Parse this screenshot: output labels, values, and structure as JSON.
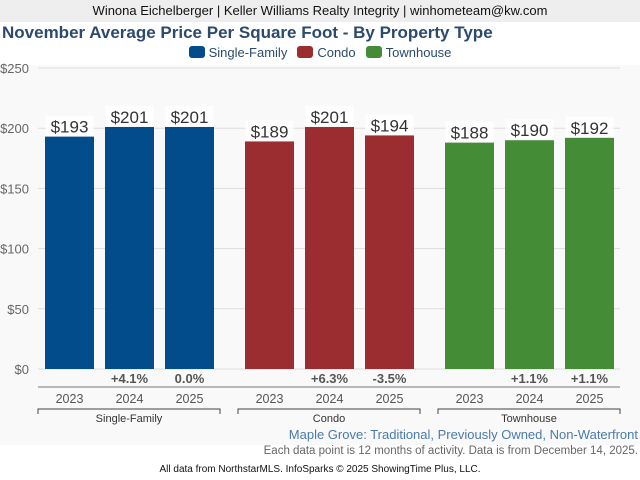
{
  "header": {
    "agent_line": "Winona Eichelberger | Keller Williams Realty Integrity | winhometeam@kw.com"
  },
  "chart_data": {
    "type": "bar",
    "title": "November Average Price Per Square Foot - By Property Type",
    "xlabel": "",
    "ylabel": "",
    "ylim": [
      0,
      250
    ],
    "yticks": [
      0,
      50,
      100,
      150,
      200,
      250
    ],
    "ytick_labels": [
      "$0",
      "$50",
      "$100",
      "$150",
      "$200",
      "$250"
    ],
    "grid": true,
    "legend_position": "top-center",
    "categories": [
      "2023",
      "2024",
      "2025"
    ],
    "series": [
      {
        "name": "Single-Family",
        "color": "#034c8c",
        "values": [
          193,
          201,
          201
        ],
        "value_labels": [
          "$193",
          "$201",
          "$201"
        ],
        "change_labels": [
          "",
          "+4.1%",
          "0.0%"
        ]
      },
      {
        "name": "Condo",
        "color": "#9b2d30",
        "values": [
          189,
          201,
          194
        ],
        "value_labels": [
          "$189",
          "$201",
          "$194"
        ],
        "change_labels": [
          "",
          "+6.3%",
          "-3.5%"
        ]
      },
      {
        "name": "Townhouse",
        "color": "#448c35",
        "values": [
          188,
          190,
          192
        ],
        "value_labels": [
          "$188",
          "$190",
          "$192"
        ],
        "change_labels": [
          "",
          "+1.1%",
          "+1.1%"
        ]
      }
    ]
  },
  "subtitle": "Maple Grove: Traditional, Previously Owned, Non-Waterfront",
  "note": "Each data point is 12 months of activity. Data is from December 14, 2025.",
  "footer": "All data from NorthstarMLS. InfoSparks © 2025 ShowingTime Plus, LLC."
}
